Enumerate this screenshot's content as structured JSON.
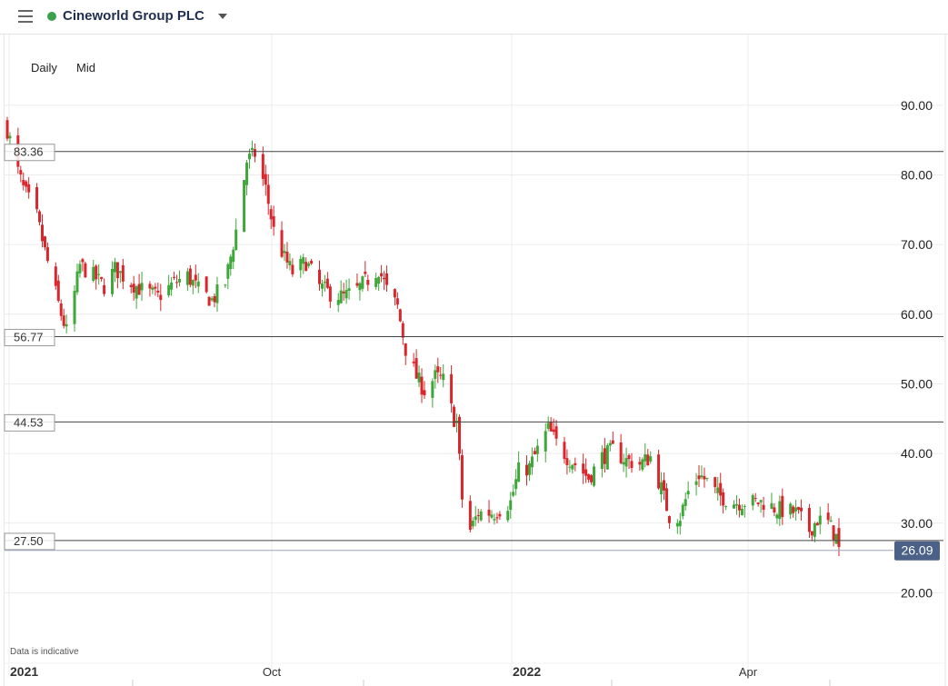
{
  "header": {
    "instrument": "Cineworld Group PLC",
    "status_color": "#3aa14a"
  },
  "toolbar": {
    "interval": "Daily",
    "price_type": "Mid"
  },
  "footnote": "Data is indicative",
  "chart_data": {
    "type": "candlestick",
    "ylim": [
      14,
      97
    ],
    "y_ticks": [
      "90.00",
      "80.00",
      "70.00",
      "60.00",
      "50.00",
      "40.00",
      "30.00",
      "20.00"
    ],
    "x_ticks": [
      {
        "label": "2021",
        "major": true
      },
      {
        "label": "Oct",
        "major": false
      },
      {
        "label": "2022",
        "major": true
      },
      {
        "label": "Apr",
        "major": false
      }
    ],
    "grid": true,
    "horizontal_levels": [
      {
        "value": 83.36,
        "label": "83.36"
      },
      {
        "value": 56.77,
        "label": "56.77"
      },
      {
        "value": 44.53,
        "label": "44.53"
      },
      {
        "value": 27.5,
        "label": "27.50"
      }
    ],
    "last_price": {
      "value": 26.09,
      "label": "26.09"
    },
    "colors": {
      "up": "#3fa73a",
      "down": "#d9262c",
      "last_price_bg": "#4b6187"
    },
    "close_path": [
      [
        "2021-07-01",
        86.5
      ],
      [
        "2021-07-05",
        80.5
      ],
      [
        "2021-07-07",
        78.0
      ],
      [
        "2021-07-12",
        74.0
      ],
      [
        "2021-07-15",
        69.0
      ],
      [
        "2021-07-19",
        63.0
      ],
      [
        "2021-07-21",
        60.0
      ],
      [
        "2021-07-23",
        57.5
      ],
      [
        "2021-07-26",
        63.0
      ],
      [
        "2021-07-28",
        67.0
      ],
      [
        "2021-08-02",
        65.5
      ],
      [
        "2021-08-06",
        64.0
      ],
      [
        "2021-08-10",
        66.5
      ],
      [
        "2021-08-16",
        64.5
      ],
      [
        "2021-08-20",
        63.5
      ],
      [
        "2021-08-26",
        62.5
      ],
      [
        "2021-09-01",
        64.5
      ],
      [
        "2021-09-06",
        65.5
      ],
      [
        "2021-09-10",
        63.5
      ],
      [
        "2021-09-15",
        62.0
      ],
      [
        "2021-09-20",
        64.5
      ],
      [
        "2021-09-24",
        72.0
      ],
      [
        "2021-09-28",
        82.0
      ],
      [
        "2021-10-01",
        83.0
      ],
      [
        "2021-10-05",
        78.0
      ],
      [
        "2021-10-08",
        72.0
      ],
      [
        "2021-10-12",
        68.0
      ],
      [
        "2021-10-15",
        66.0
      ],
      [
        "2021-10-20",
        67.5
      ],
      [
        "2021-10-25",
        64.0
      ],
      [
        "2021-10-29",
        63.0
      ],
      [
        "2021-11-03",
        62.5
      ],
      [
        "2021-11-08",
        63.5
      ],
      [
        "2021-11-12",
        65.0
      ],
      [
        "2021-11-16",
        66.5
      ],
      [
        "2021-11-19",
        63.5
      ],
      [
        "2021-11-23",
        61.0
      ],
      [
        "2021-11-26",
        55.0
      ],
      [
        "2021-11-30",
        51.0
      ],
      [
        "2021-12-03",
        49.0
      ],
      [
        "2021-12-07",
        51.0
      ],
      [
        "2021-12-10",
        50.5
      ],
      [
        "2021-12-14",
        45.0
      ],
      [
        "2021-12-15",
        44.5
      ],
      [
        "2021-12-17",
        33.5
      ],
      [
        "2021-12-20",
        29.0
      ],
      [
        "2021-12-23",
        31.5
      ],
      [
        "2021-12-29",
        31.5
      ],
      [
        "2022-01-04",
        33.0
      ],
      [
        "2022-01-07",
        37.5
      ],
      [
        "2022-01-11",
        38.0
      ],
      [
        "2022-01-14",
        40.5
      ],
      [
        "2022-01-18",
        43.5
      ],
      [
        "2022-01-21",
        41.5
      ],
      [
        "2022-01-25",
        39.5
      ],
      [
        "2022-01-28",
        38.5
      ],
      [
        "2022-02-02",
        36.5
      ],
      [
        "2022-02-07",
        39.5
      ],
      [
        "2022-02-11",
        40.5
      ],
      [
        "2022-02-16",
        39.0
      ],
      [
        "2022-02-21",
        38.5
      ],
      [
        "2022-02-25",
        39.5
      ],
      [
        "2022-03-01",
        35.0
      ],
      [
        "2022-03-04",
        31.0
      ],
      [
        "2022-03-08",
        31.0
      ],
      [
        "2022-03-11",
        34.5
      ],
      [
        "2022-03-15",
        37.0
      ],
      [
        "2022-03-18",
        36.0
      ],
      [
        "2022-03-22",
        34.0
      ],
      [
        "2022-03-28",
        33.0
      ],
      [
        "2022-04-04",
        33.0
      ],
      [
        "2022-04-08",
        33.0
      ],
      [
        "2022-04-13",
        32.0
      ],
      [
        "2022-04-20",
        31.5
      ],
      [
        "2022-04-25",
        29.0
      ],
      [
        "2022-04-28",
        30.5
      ],
      [
        "2022-05-02",
        30.0
      ],
      [
        "2022-05-05",
        28.0
      ],
      [
        "2022-05-06",
        26.09
      ]
    ]
  }
}
